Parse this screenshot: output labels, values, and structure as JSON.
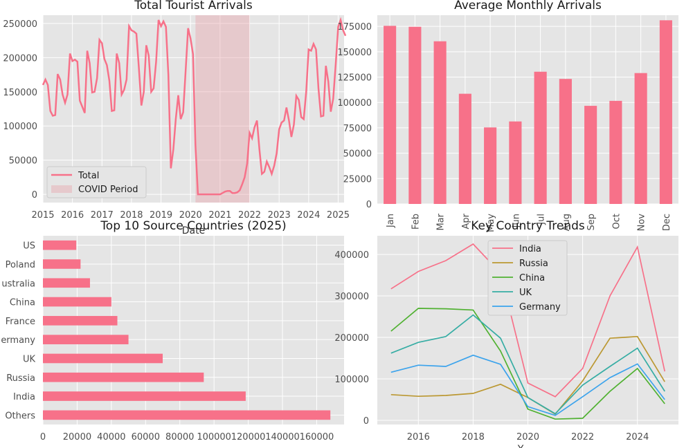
{
  "colors": {
    "pink": "#f77189",
    "panel_bg": "#e5e5e5",
    "grid": "#ffffff",
    "covid_fill": "#e8a0a8",
    "series": {
      "India": "#f77189",
      "Russia": "#bb9832",
      "China": "#50b131",
      "UK": "#36ada4",
      "Germany": "#3ba3ec"
    }
  },
  "chart_data": [
    {
      "id": "arrivals",
      "type": "line",
      "title": "Total Tourist Arrivals",
      "xlabel": "Date",
      "ylabel": "",
      "xlim": [
        2015,
        2025.2
      ],
      "ylim": [
        -12000,
        262000
      ],
      "xticks": [
        2015,
        2016,
        2017,
        2018,
        2019,
        2020,
        2021,
        2022,
        2023,
        2024,
        2025
      ],
      "xtick_labels": [
        "2015",
        "2016",
        "2017",
        "2018",
        "2019",
        "2020",
        "2021",
        "2022",
        "2023",
        "2024",
        "2025"
      ],
      "yticks": [
        0,
        50000,
        100000,
        150000,
        200000,
        250000
      ],
      "ytick_labels": [
        "0",
        "50000",
        "100000",
        "150000",
        "200000",
        "250000"
      ],
      "covid_span": [
        2020.167,
        2022.0
      ],
      "legend": {
        "location": "lower-left",
        "entries": [
          "Total",
          "COVID Period"
        ]
      },
      "series": [
        {
          "name": "Total",
          "x_start": 2015.0,
          "x_step": 0.08333,
          "values": [
            160000,
            168000,
            160000,
            122000,
            115000,
            116000,
            176000,
            168000,
            146000,
            134000,
            146000,
            206000,
            195000,
            197000,
            194000,
            137000,
            128000,
            119000,
            210000,
            192000,
            149000,
            150000,
            170000,
            226000,
            221000,
            198000,
            189000,
            166000,
            122000,
            123000,
            206000,
            192000,
            146000,
            153000,
            168000,
            246000,
            240000,
            238000,
            235000,
            185000,
            130000,
            150000,
            218000,
            203000,
            150000,
            155000,
            194000,
            255000,
            246000,
            253000,
            245000,
            175000,
            38000,
            66000,
            110000,
            145000,
            110000,
            120000,
            180000,
            243000,
            228000,
            205000,
            72000,
            0,
            0,
            0,
            0,
            0,
            0,
            0,
            0,
            0,
            0,
            2000,
            4000,
            5000,
            5000,
            2000,
            2000,
            3000,
            6000,
            15000,
            25000,
            45000,
            90000,
            82000,
            98000,
            108000,
            66000,
            30000,
            33000,
            48000,
            40000,
            30000,
            42000,
            60000,
            95000,
            105000,
            108000,
            127000,
            108000,
            84000,
            102000,
            144000,
            138000,
            113000,
            110000,
            150000,
            212000,
            210000,
            220000,
            212000,
            155000,
            114000,
            115000,
            188000,
            165000,
            121000,
            140000,
            190000,
            245000,
            255000,
            240000,
            232000
          ]
        }
      ]
    },
    {
      "id": "monthly",
      "type": "bar",
      "title": "Average Monthly Arrivals",
      "categories": [
        "Jan",
        "Feb",
        "Mar",
        "Apr",
        "May",
        "Jun",
        "Jul",
        "Aug",
        "Sep",
        "Oct",
        "Nov",
        "Dec"
      ],
      "values": [
        175500,
        174600,
        160300,
        108600,
        75400,
        81300,
        130300,
        123200,
        96700,
        101600,
        129000,
        181000
      ],
      "ylim": [
        0,
        186000
      ],
      "yticks": [
        0,
        25000,
        50000,
        75000,
        100000,
        125000,
        150000,
        175000
      ],
      "ytick_labels": [
        "0",
        "25000",
        "50000",
        "75000",
        "100000",
        "125000",
        "150000",
        "175000"
      ]
    },
    {
      "id": "countries",
      "type": "barh",
      "title": "Top 10 Source Countries (2025)",
      "categories": [
        "Others",
        "India",
        "Russia",
        "UK",
        "Germany",
        "France",
        "China",
        "Australia",
        "Poland",
        "US"
      ],
      "category_labels": [
        "Others",
        "India",
        "Russia",
        "UK",
        "ermany",
        "France",
        "China",
        "ustralia",
        "Poland",
        "US"
      ],
      "values": [
        168000,
        118500,
        94000,
        70000,
        50000,
        43500,
        40000,
        27500,
        22000,
        19500
      ],
      "xlim": [
        0,
        176000
      ],
      "xticks": [
        0,
        20000,
        40000,
        60000,
        80000,
        100000,
        120000,
        140000,
        160000
      ],
      "xtick_labels": [
        "0",
        "20000",
        "40000",
        "60000",
        "80000",
        "100000",
        "120000",
        "140000",
        "160000"
      ]
    },
    {
      "id": "trends",
      "type": "line",
      "title": "Key Country Trends",
      "xlabel": "Y",
      "x": [
        2015,
        2016,
        2017,
        2018,
        2019,
        2020,
        2021,
        2022,
        2023,
        2024,
        2025
      ],
      "xlim": [
        2014.5,
        2025.5
      ],
      "ylim": [
        -10000,
        445000
      ],
      "xticks": [
        2016,
        2018,
        2020,
        2022,
        2024
      ],
      "xtick_labels": [
        "2016",
        "2018",
        "2020",
        "2022",
        "2024"
      ],
      "yticks": [
        0,
        100000,
        200000,
        300000,
        400000
      ],
      "ytick_labels": [
        "0",
        "100000",
        "200000",
        "300000",
        "400000"
      ],
      "legend": {
        "location": "top-center"
      },
      "series": [
        {
          "name": "India",
          "values": [
            317000,
            359000,
            385000,
            425000,
            355000,
            90000,
            57000,
            125000,
            300000,
            418000,
            118000
          ]
        },
        {
          "name": "Russia",
          "values": [
            62000,
            58000,
            60000,
            65000,
            87000,
            55000,
            15000,
            95000,
            198000,
            202000,
            93000
          ]
        },
        {
          "name": "China",
          "values": [
            215000,
            270000,
            269000,
            266000,
            167000,
            27000,
            3000,
            5000,
            70000,
            125000,
            40000
          ]
        },
        {
          "name": "UK",
          "values": [
            162000,
            188000,
            202000,
            254000,
            198000,
            55000,
            16000,
            85000,
            130000,
            174000,
            70000
          ]
        },
        {
          "name": "Germany",
          "values": [
            116000,
            133000,
            130000,
            157000,
            135000,
            33000,
            12000,
            57000,
            103000,
            136000,
            50000
          ]
        }
      ]
    }
  ]
}
